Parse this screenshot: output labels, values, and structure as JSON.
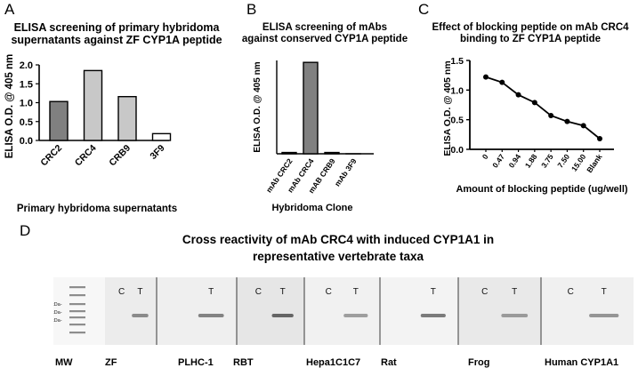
{
  "panels": {
    "a": {
      "letter": "A",
      "title_lines": [
        "ELISA screening of primary hybridoma",
        "supernatants against ZF CYP1A peptide"
      ]
    },
    "b": {
      "letter": "B",
      "title_lines": [
        "ELISA screening of mAbs",
        "against conserved CYP1A peptide"
      ]
    },
    "c": {
      "letter": "C",
      "title_lines": [
        "Effect of blocking peptide on mAb CRC4",
        "binding to ZF CYP1A peptide"
      ]
    },
    "d": {
      "letter": "D",
      "title_lines": [
        "Cross reactivity of mAb CRC4 with induced CYP1A1 in",
        "representative vertebrate taxa"
      ]
    }
  },
  "chart_data": [
    {
      "type": "bar",
      "categories": [
        "CRC2",
        "CRC4",
        "CRB9",
        "3F9"
      ],
      "values": [
        1.03,
        1.85,
        1.16,
        0.18
      ],
      "fills": [
        "#808080",
        "#c8c8c8",
        "#c8c8c8",
        "#ffffff"
      ],
      "xlabel": "Primary hybridoma supernatants",
      "ylabel": "ELISA O.D. @ 405 nm",
      "ylim": [
        0,
        2.0
      ],
      "yticks": [
        "0.0",
        "0.5",
        "1.0",
        "1.5",
        "2.0"
      ],
      "grid": false
    },
    {
      "type": "bar",
      "categories": [
        "mAb CRC2",
        "mAb CRC4",
        "mAB CRB9",
        "mAb 3F9"
      ],
      "values": [
        0.02,
        1.42,
        0.02,
        0.0
      ],
      "fills": [
        "#808080",
        "#808080",
        "#808080",
        "#808080"
      ],
      "xlabel": "Hybridoma Clone",
      "ylabel": "ELISA O.D. @ 405 nm",
      "ylim": [
        0,
        1.45
      ],
      "grid": false
    },
    {
      "type": "line",
      "categories": [
        "0",
        "0.47",
        "0.94",
        "1.88",
        "3.75",
        "7.50",
        "15.00",
        "Blank"
      ],
      "values": [
        1.22,
        1.13,
        0.92,
        0.79,
        0.57,
        0.47,
        0.4,
        0.18
      ],
      "xlabel": "Amount of blocking peptide (ug/well)",
      "ylabel": "ELISA O.D. @ 405 nm",
      "ylim": [
        0,
        1.5
      ],
      "yticks": [
        "0.0",
        "0.5",
        "1.0",
        "1.5"
      ],
      "grid": false
    }
  ],
  "blot": {
    "markers": [
      "75 kDa-",
      "64 kDa-",
      "48 kDa-"
    ],
    "panels": [
      {
        "c": "C",
        "t": "T",
        "band": 0.55,
        "bg": "#ececec"
      },
      {
        "c": "",
        "t": "T",
        "band": 0.6,
        "bg": "#efefef"
      },
      {
        "c": "C",
        "t": "T",
        "band": 0.75,
        "bg": "#e6e6e6"
      },
      {
        "c": "C",
        "t": "T",
        "band": 0.45,
        "bg": "#f1f1f1"
      },
      {
        "c": "",
        "t": "T",
        "band": 0.65,
        "bg": "#f3f3f3"
      },
      {
        "c": "C",
        "t": "T",
        "band": 0.45,
        "bg": "#e9e9e9"
      },
      {
        "c": "C",
        "t": "T",
        "band": 0.5,
        "bg": "#f0f0f0"
      }
    ],
    "lane_labels": [
      "MW",
      "ZF",
      "PLHC-1",
      "RBT",
      "Hepa1C1C7",
      "Rat",
      "Frog",
      "Human CYP1A1"
    ]
  }
}
